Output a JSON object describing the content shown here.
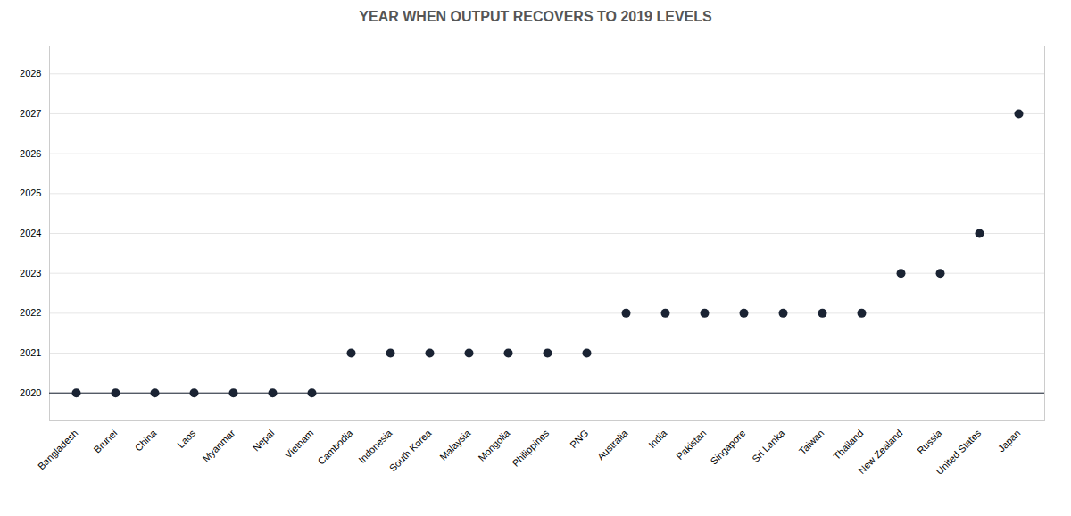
{
  "chart_data": {
    "type": "scatter",
    "title": "YEAR WHEN OUTPUT RECOVERS TO 2019 LEVELS",
    "categories": [
      "Bangladesh",
      "Brunei",
      "China",
      "Laos",
      "Myanmar",
      "Nepal",
      "Vietnam",
      "Cambodia",
      "Indonesia",
      "South Korea",
      "Malaysia",
      "Mongolia",
      "Philippines",
      "PNG",
      "Australia",
      "India",
      "Pakistan",
      "Singapore",
      "Sri Lanka",
      "Taiwan",
      "Thailand",
      "New Zealand",
      "Russia",
      "United States",
      "Japan"
    ],
    "values": [
      2020,
      2020,
      2020,
      2020,
      2020,
      2020,
      2020,
      2021,
      2021,
      2021,
      2021,
      2021,
      2021,
      2021,
      2022,
      2022,
      2022,
      2022,
      2022,
      2022,
      2022,
      2023,
      2023,
      2024,
      2027
    ],
    "color": "#1a2333",
    "baseline": 2020,
    "ylim": [
      2019.3,
      2028.7
    ],
    "yticks": [
      2020,
      2021,
      2022,
      2023,
      2024,
      2025,
      2026,
      2027,
      2028
    ],
    "grid": true
  }
}
